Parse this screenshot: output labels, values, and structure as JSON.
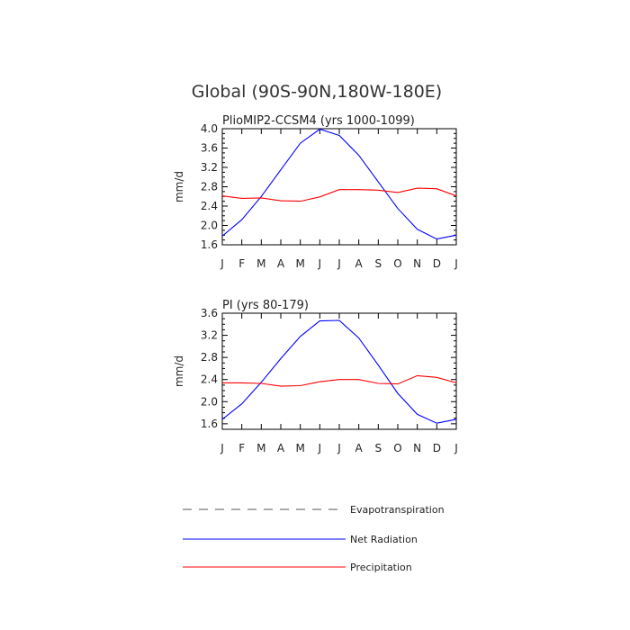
{
  "figure": {
    "title": "Global (90S-90N,180W-180E)"
  },
  "chart_data": [
    {
      "type": "line",
      "title": "PlioMIP2-CCSM4 (yrs 1000-1099)",
      "ylabel": "mm/d",
      "xlabel": "",
      "x": [
        "J",
        "F",
        "M",
        "A",
        "M",
        "J",
        "J",
        "A",
        "S",
        "O",
        "N",
        "D",
        "J"
      ],
      "ylim": [
        1.6,
        4.0
      ],
      "yticks": [
        "1.6",
        "2.0",
        "2.4",
        "2.8",
        "3.2",
        "3.6",
        "4.0"
      ],
      "series": [
        {
          "name": "Net Radiation",
          "color": "#0000ff",
          "values": [
            1.78,
            2.12,
            2.6,
            3.15,
            3.7,
            3.99,
            3.86,
            3.45,
            2.9,
            2.35,
            1.92,
            1.72,
            1.8
          ]
        },
        {
          "name": "Precipitation",
          "color": "#ff0000",
          "values": [
            2.61,
            2.56,
            2.57,
            2.51,
            2.5,
            2.59,
            2.74,
            2.74,
            2.73,
            2.68,
            2.77,
            2.76,
            2.61
          ]
        }
      ]
    },
    {
      "type": "line",
      "title": "PI (yrs 80-179)",
      "ylabel": "mm/d",
      "xlabel": "",
      "x": [
        "J",
        "F",
        "M",
        "A",
        "M",
        "J",
        "J",
        "A",
        "S",
        "O",
        "N",
        "D",
        "J"
      ],
      "ylim": [
        1.5,
        3.6
      ],
      "yticks": [
        "1.6",
        "2.0",
        "2.4",
        "2.8",
        "3.2",
        "3.6"
      ],
      "series": [
        {
          "name": "Net Radiation",
          "color": "#0000ff",
          "values": [
            1.68,
            1.96,
            2.35,
            2.78,
            3.18,
            3.46,
            3.47,
            3.15,
            2.66,
            2.15,
            1.77,
            1.61,
            1.68
          ]
        },
        {
          "name": "Precipitation",
          "color": "#ff0000",
          "values": [
            2.34,
            2.34,
            2.33,
            2.28,
            2.29,
            2.36,
            2.4,
            2.4,
            2.33,
            2.32,
            2.47,
            2.44,
            2.34
          ]
        }
      ]
    }
  ],
  "legend": [
    {
      "label": "Evapotranspiration",
      "color": "#555555",
      "style": "dashed"
    },
    {
      "label": "Net Radiation",
      "color": "#0000ff",
      "style": "solid"
    },
    {
      "label": "Precipitation",
      "color": "#ff0000",
      "style": "solid"
    }
  ]
}
